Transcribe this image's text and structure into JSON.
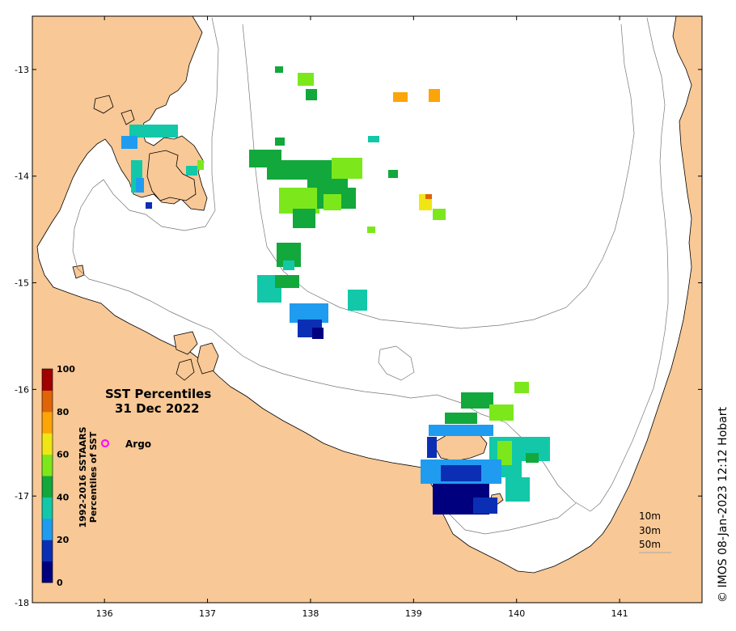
{
  "map": {
    "title_line1": "SST Percentiles",
    "title_line2": "31 Dec 2022",
    "credit": "© IMOS 08-Jan-2023 12:12 Hobart",
    "lon_ticks": [
      "136",
      "137",
      "138",
      "139",
      "140",
      "141"
    ],
    "lat_ticks": [
      "-13",
      "-14",
      "-15",
      "-16",
      "-17",
      "-18"
    ],
    "lon_values": [
      136,
      137,
      138,
      139,
      140,
      141
    ],
    "lat_values": [
      -13,
      -14,
      -15,
      -16,
      -17,
      -18
    ],
    "extent": {
      "lon_min": 135.3,
      "lon_max": 141.8,
      "lat_min": -18.0,
      "lat_max": -12.5
    },
    "land_color": "#f8c896",
    "sea_color": "#ffffff"
  },
  "colorbar": {
    "title_line1": "1992-2016 SSTAARS",
    "title_line2": "Percentiles of SST",
    "tick_labels": [
      "0",
      "20",
      "40",
      "60",
      "80",
      "100"
    ],
    "colors": [
      "#00007f",
      "#0a2fb4",
      "#1f9cf0",
      "#12c8a8",
      "#12a83c",
      "#7ce81c",
      "#f0e614",
      "#fca408",
      "#e06408",
      "#a00000"
    ]
  },
  "legend": {
    "argo_label": "Argo",
    "argo_color": "#ff00ff"
  },
  "depth_labels": [
    "10m",
    "30m",
    "50m"
  ]
}
